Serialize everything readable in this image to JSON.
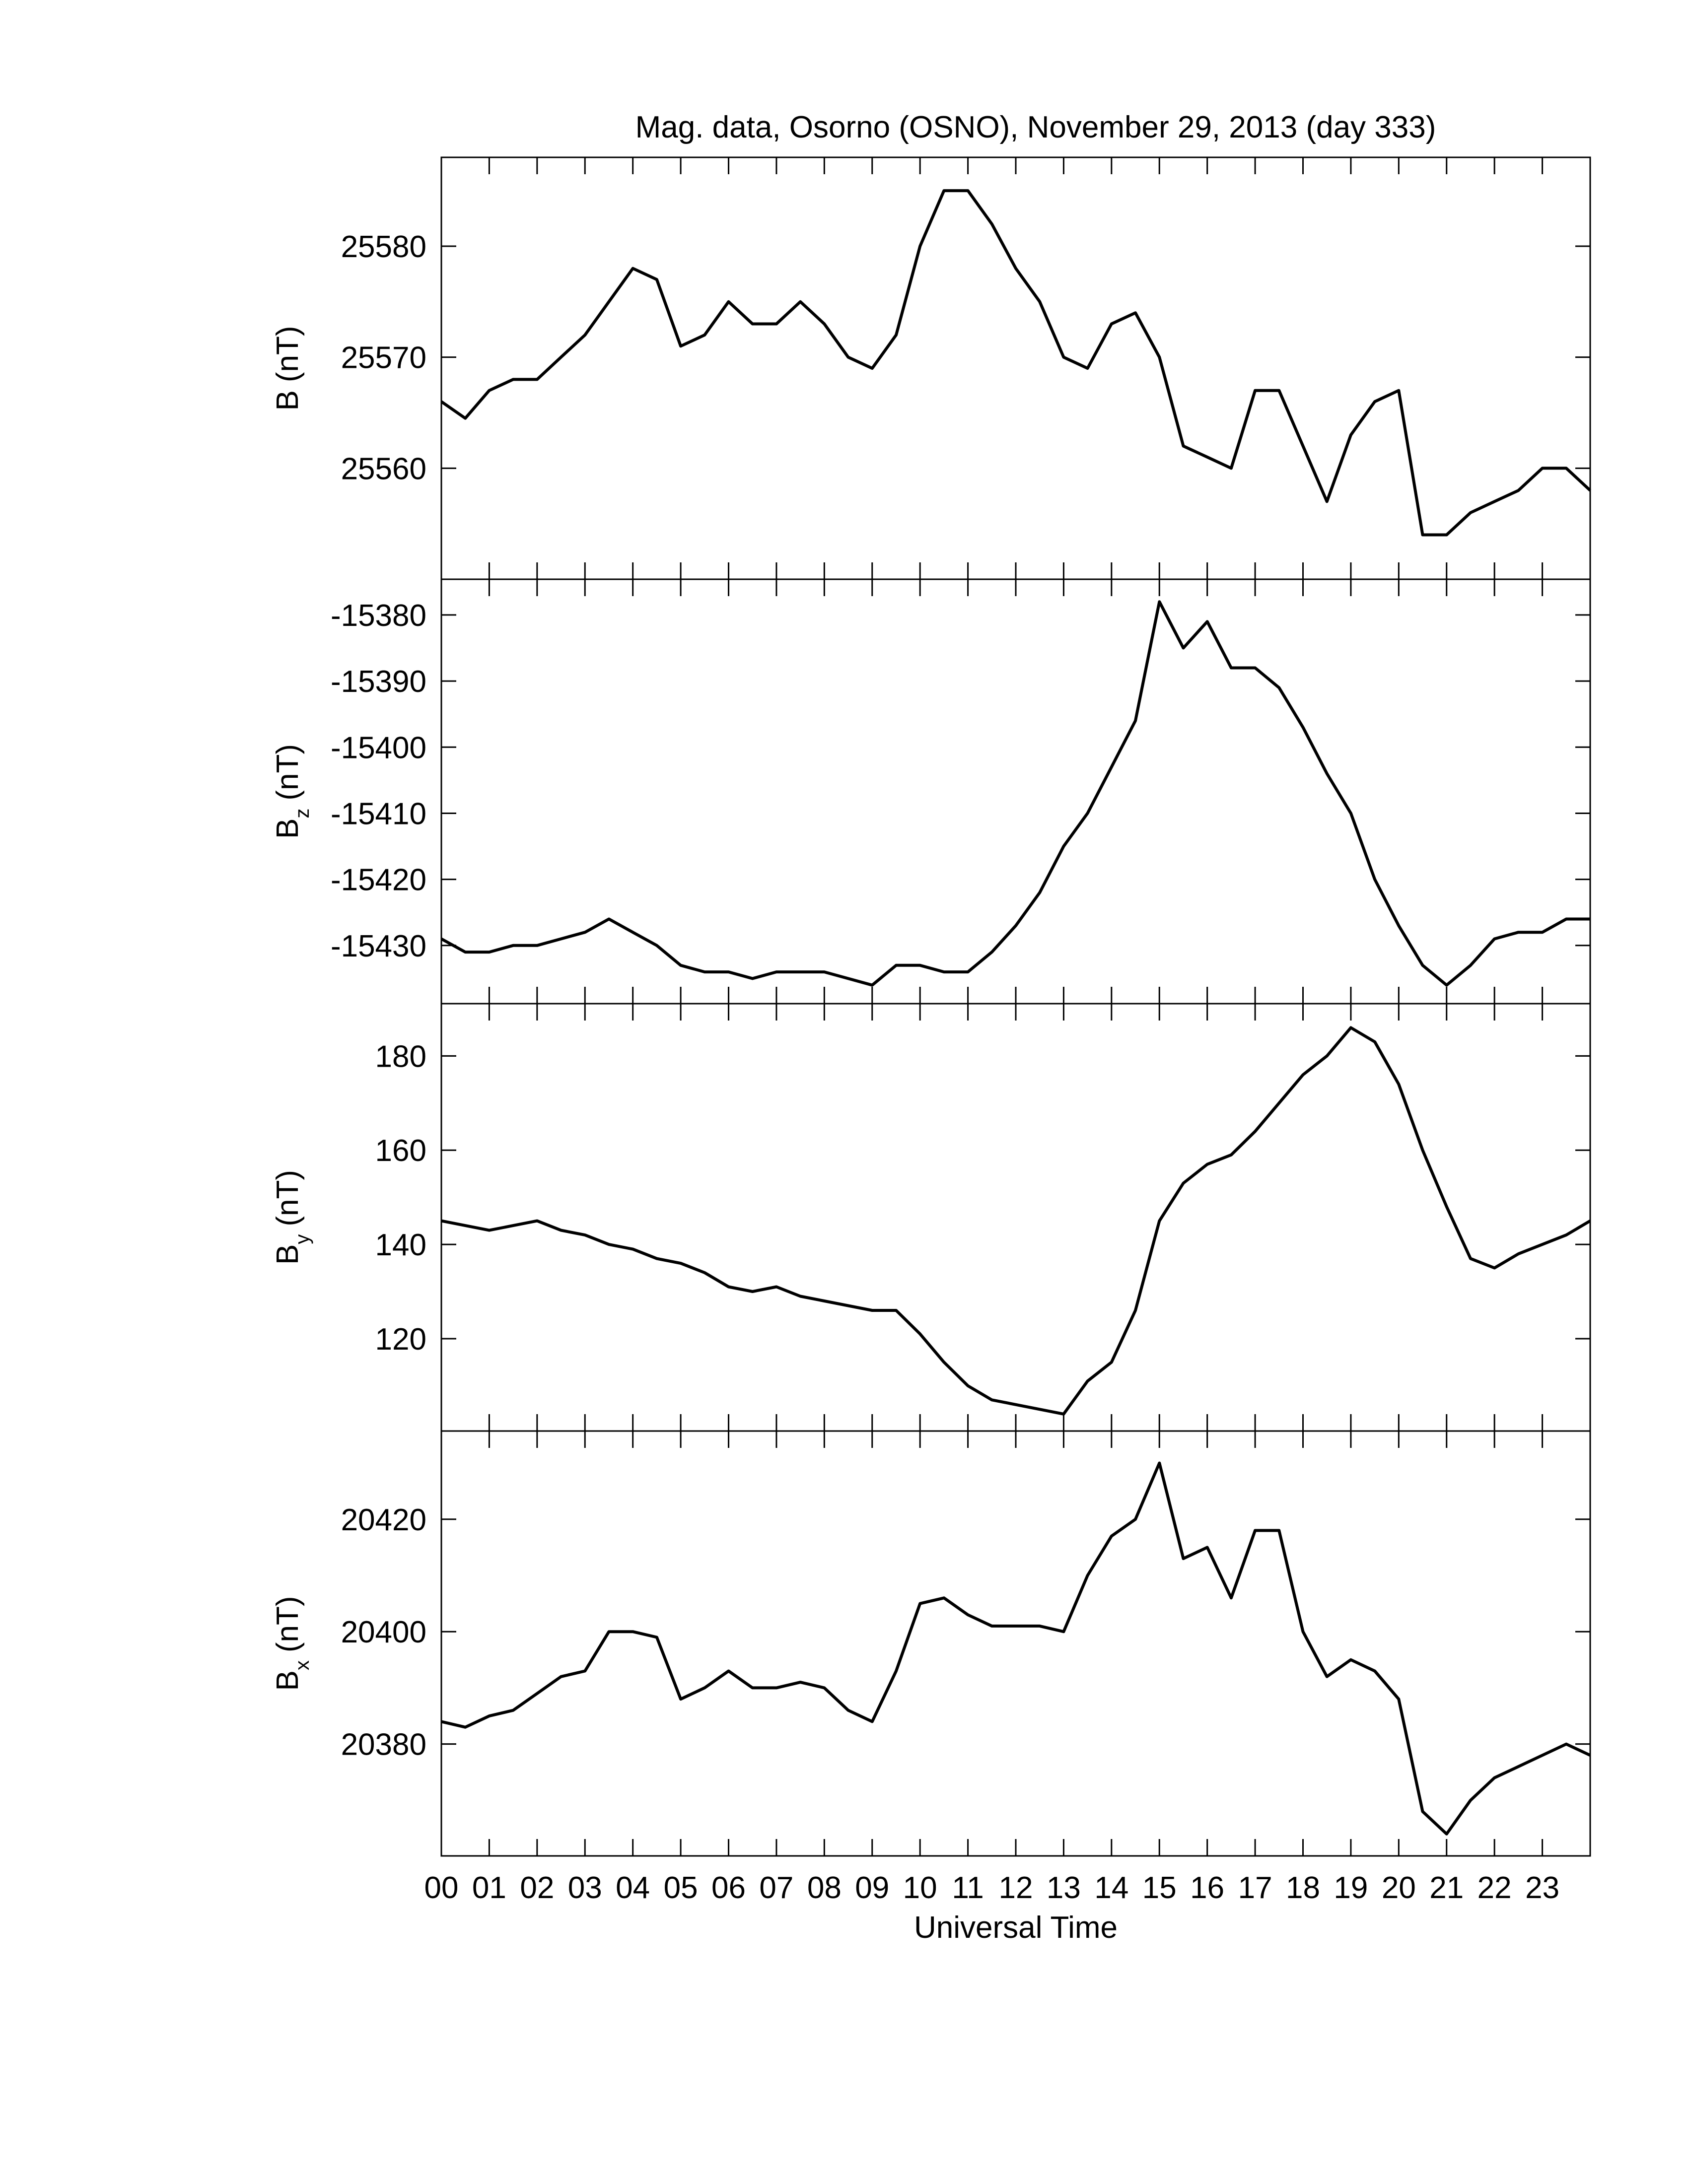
{
  "chart_data": [
    {
      "type": "line",
      "title": "Mag. data, Osorno (OSNO), November 29, 2013 (day 333)",
      "ylabel": "B",
      "ylabel_units": "(nT)",
      "color": "#000000",
      "x": [
        0,
        0.5,
        1,
        1.5,
        2,
        2.5,
        3,
        3.5,
        4,
        4.5,
        5,
        5.5,
        6,
        6.5,
        7,
        7.5,
        8,
        8.5,
        9,
        9.5,
        10,
        10.5,
        11,
        11.5,
        12,
        12.5,
        13,
        13.5,
        14,
        14.5,
        15,
        15.5,
        16,
        16.5,
        17,
        17.5,
        18,
        18.5,
        19,
        19.5,
        20,
        20.5,
        21,
        21.5,
        22,
        22.5,
        23,
        23.5,
        24
      ],
      "values": [
        25566,
        25564.5,
        25567,
        25568,
        25568,
        25570,
        25572,
        25575,
        25578,
        25577,
        25571,
        25572,
        25575,
        25573,
        25573,
        25575,
        25573,
        25570,
        25569,
        25572,
        25580,
        25585,
        25585,
        25582,
        25578,
        25575,
        25570,
        25569,
        25573,
        25574,
        25570,
        25562,
        25561,
        25560,
        25567,
        25567,
        25562,
        25557,
        25563,
        25566,
        25567,
        25554,
        25554,
        25556,
        25557,
        25558,
        25560,
        25560,
        25558
      ],
      "xlim": [
        0,
        24
      ],
      "xticks": [
        0,
        1,
        2,
        3,
        4,
        5,
        6,
        7,
        8,
        9,
        10,
        11,
        12,
        13,
        14,
        15,
        16,
        17,
        18,
        19,
        20,
        21,
        22,
        23
      ],
      "ylim": [
        25550,
        25588
      ],
      "yticks": [
        25560,
        25570,
        25580
      ]
    },
    {
      "type": "line",
      "ylabel": "B",
      "ylabel_subscript": "z",
      "ylabel_units": "(nT)",
      "color": "#000000",
      "x": [
        0,
        0.5,
        1,
        1.5,
        2,
        2.5,
        3,
        3.5,
        4,
        4.5,
        5,
        5.5,
        6,
        6.5,
        7,
        7.5,
        8,
        8.5,
        9,
        9.5,
        10,
        10.5,
        11,
        11.5,
        12,
        12.5,
        13,
        13.5,
        14,
        14.5,
        15,
        15.5,
        16,
        16.5,
        17,
        17.5,
        18,
        18.5,
        19,
        19.5,
        20,
        20.5,
        21,
        21.5,
        22,
        22.5,
        23,
        23.5,
        24
      ],
      "values": [
        -15429,
        -15431,
        -15431,
        -15430,
        -15430,
        -15429,
        -15428,
        -15426,
        -15428,
        -15430,
        -15433,
        -15434,
        -15434,
        -15435,
        -15434,
        -15434,
        -15434,
        -15435,
        -15436,
        -15433,
        -15433,
        -15434,
        -15434,
        -15431,
        -15427,
        -15422,
        -15415,
        -15410,
        -15403,
        -15396,
        -15378,
        -15385,
        -15381,
        -15388,
        -15388,
        -15391,
        -15397,
        -15404,
        -15410,
        -15420,
        -15427,
        -15433,
        -15436,
        -15433,
        -15429,
        -15428,
        -15428,
        -15426,
        -15426
      ],
      "xlim": [
        0,
        24
      ],
      "xticks": [
        0,
        1,
        2,
        3,
        4,
        5,
        6,
        7,
        8,
        9,
        10,
        11,
        12,
        13,
        14,
        15,
        16,
        17,
        18,
        19,
        20,
        21,
        22,
        23
      ],
      "ylim": [
        -15438.8,
        -15374.6
      ],
      "yticks": [
        -15430,
        -15420,
        -15410,
        -15400,
        -15390,
        -15380
      ]
    },
    {
      "type": "line",
      "ylabel": "B",
      "ylabel_subscript": "y",
      "ylabel_units": "(nT)",
      "color": "#000000",
      "x": [
        0,
        0.5,
        1,
        1.5,
        2,
        2.5,
        3,
        3.5,
        4,
        4.5,
        5,
        5.5,
        6,
        6.5,
        7,
        7.5,
        8,
        8.5,
        9,
        9.5,
        10,
        10.5,
        11,
        11.5,
        12,
        12.5,
        13,
        13.5,
        14,
        14.5,
        15,
        15.5,
        16,
        16.5,
        17,
        17.5,
        18,
        18.5,
        19,
        19.5,
        20,
        20.5,
        21,
        21.5,
        22,
        22.5,
        23,
        23.5,
        24
      ],
      "values": [
        145,
        144,
        143,
        144,
        145,
        143,
        142,
        140,
        139,
        137,
        136,
        134,
        131,
        130,
        131,
        129,
        128,
        127,
        126,
        126,
        121,
        115,
        110,
        107,
        106,
        105,
        104,
        111,
        115,
        126,
        145,
        153,
        157,
        159,
        164,
        170,
        176,
        180,
        186,
        183,
        174,
        160,
        148,
        137,
        135,
        138,
        140,
        142,
        145
      ],
      "xlim": [
        0,
        24
      ],
      "xticks": [
        0,
        1,
        2,
        3,
        4,
        5,
        6,
        7,
        8,
        9,
        10,
        11,
        12,
        13,
        14,
        15,
        16,
        17,
        18,
        19,
        20,
        21,
        22,
        23
      ],
      "ylim": [
        100.4,
        191.1
      ],
      "yticks": [
        120,
        140,
        160,
        180
      ]
    },
    {
      "type": "line",
      "ylabel": "B",
      "ylabel_subscript": "x",
      "ylabel_units": "(nT)",
      "color": "#000000",
      "xlabel": "Universal Time",
      "x": [
        0,
        0.5,
        1,
        1.5,
        2,
        2.5,
        3,
        3.5,
        4,
        4.5,
        5,
        5.5,
        6,
        6.5,
        7,
        7.5,
        8,
        8.5,
        9,
        9.5,
        10,
        10.5,
        11,
        11.5,
        12,
        12.5,
        13,
        13.5,
        14,
        14.5,
        15,
        15.5,
        16,
        16.5,
        17,
        17.5,
        18,
        18.5,
        19,
        19.5,
        20,
        20.5,
        21,
        21.5,
        22,
        22.5,
        23,
        23.5,
        24
      ],
      "values": [
        20384,
        20383,
        20385,
        20386,
        20389,
        20392,
        20393,
        20400,
        20400,
        20399,
        20388,
        20390,
        20393,
        20390,
        20390,
        20391,
        20390,
        20386,
        20384,
        20393,
        20405,
        20406,
        20403,
        20401,
        20401,
        20401,
        20400,
        20410,
        20417,
        20420,
        20430,
        20413,
        20415,
        20406,
        20418,
        20418,
        20400,
        20392,
        20395,
        20393,
        20388,
        20368,
        20364,
        20370,
        20374,
        20376,
        20378,
        20380,
        20378
      ],
      "xlim": [
        0,
        24
      ],
      "xticks": [
        {
          "value": 0,
          "label": "00"
        },
        {
          "value": 1,
          "label": "01"
        },
        {
          "value": 2,
          "label": "02"
        },
        {
          "value": 3,
          "label": "03"
        },
        {
          "value": 4,
          "label": "04"
        },
        {
          "value": 5,
          "label": "05"
        },
        {
          "value": 6,
          "label": "06"
        },
        {
          "value": 7,
          "label": "07"
        },
        {
          "value": 8,
          "label": "08"
        },
        {
          "value": 9,
          "label": "09"
        },
        10,
        11,
        12,
        13,
        14,
        15,
        16,
        17,
        18,
        19,
        20,
        21,
        22,
        23
      ],
      "ylim": [
        20360.1,
        20435.7
      ],
      "yticks": [
        20380,
        20400,
        20420
      ]
    }
  ]
}
